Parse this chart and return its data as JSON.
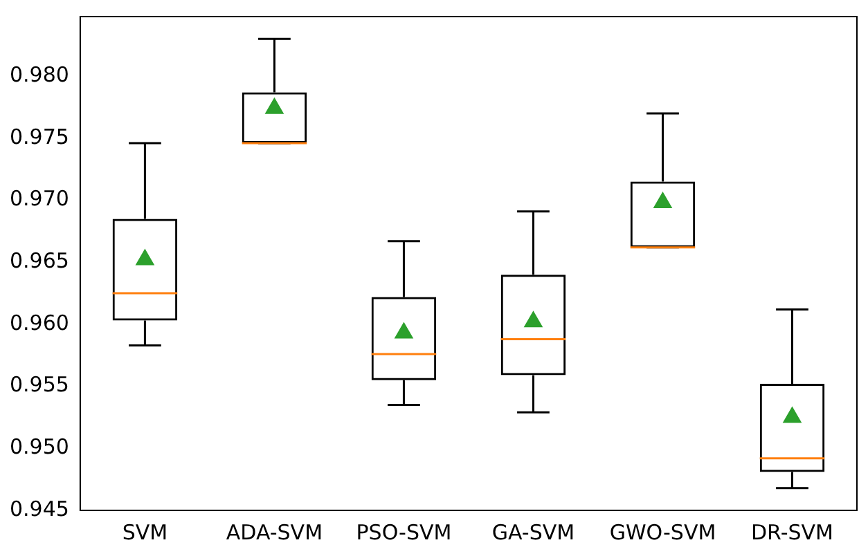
{
  "chart_data": {
    "type": "box",
    "categories": [
      "SVM",
      "ADA-SVM",
      "PSO-SVM",
      "GA-SVM",
      "GWO-SVM",
      "DR-SVM"
    ],
    "boxes": [
      {
        "low": 0.9583,
        "q1": 0.9603,
        "median": 0.9625,
        "q3": 0.9685,
        "high": 0.9746,
        "mean": 0.9652
      },
      {
        "low": 0.9746,
        "q1": 0.9746,
        "median": 0.9746,
        "q3": 0.9787,
        "high": 0.983,
        "mean": 0.9774
      },
      {
        "low": 0.9535,
        "q1": 0.9555,
        "median": 0.9576,
        "q3": 0.9622,
        "high": 0.9667,
        "mean": 0.9593
      },
      {
        "low": 0.9529,
        "q1": 0.9559,
        "median": 0.9588,
        "q3": 0.964,
        "high": 0.9691,
        "mean": 0.9602
      },
      {
        "low": 0.9662,
        "q1": 0.9662,
        "median": 0.9662,
        "q3": 0.9715,
        "high": 0.977,
        "mean": 0.9698
      },
      {
        "low": 0.9468,
        "q1": 0.9481,
        "median": 0.9492,
        "q3": 0.9552,
        "high": 0.9612,
        "mean": 0.9525
      }
    ],
    "ylim": [
      0.945,
      0.9848
    ],
    "yticks": [
      {
        "value": 0.945,
        "label": "0.945"
      },
      {
        "value": 0.95,
        "label": "0.950"
      },
      {
        "value": 0.955,
        "label": "0.955"
      },
      {
        "value": 0.96,
        "label": "0.960"
      },
      {
        "value": 0.965,
        "label": "0.965"
      },
      {
        "value": 0.97,
        "label": "0.970"
      },
      {
        "value": 0.975,
        "label": "0.975"
      },
      {
        "value": 0.98,
        "label": "0.980"
      }
    ],
    "marker": "triangle",
    "grid": false,
    "legend": false
  }
}
